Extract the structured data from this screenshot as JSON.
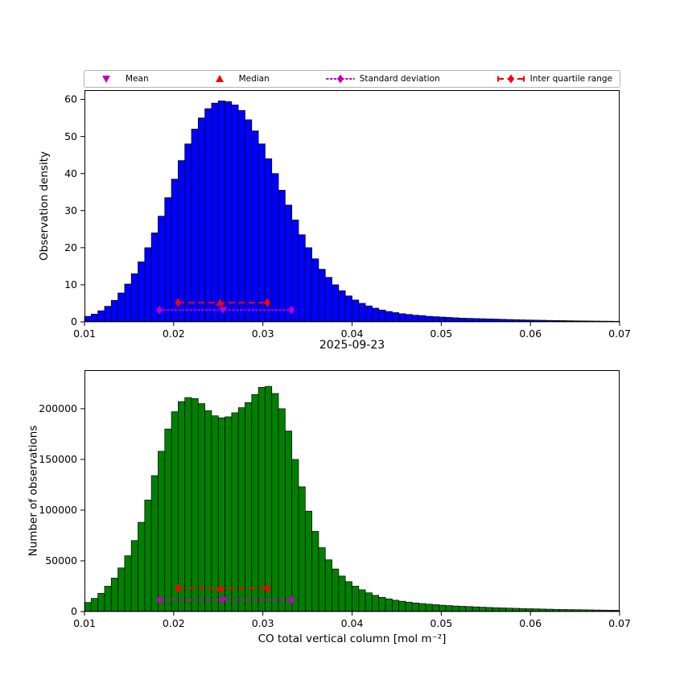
{
  "figure": {
    "title": "2025-09-23",
    "xlabel": "CO total vertical column [mol m⁻²]",
    "background": "#ffffff"
  },
  "legend": {
    "items": [
      {
        "label": "Mean",
        "style": "triangle-down",
        "color": "#bf00bf"
      },
      {
        "label": "Median",
        "style": "triangle-up",
        "color": "#ff0000"
      },
      {
        "label": "Standard deviation",
        "style": "diamond-dotted",
        "color": "#bf00bf"
      },
      {
        "label": "Inter quartile range",
        "style": "diamond-dashed",
        "color": "#ff0000"
      }
    ]
  },
  "chart_data": [
    {
      "type": "bar",
      "name": "observation-density-histogram",
      "ylabel": "Observation density",
      "bar_color": "#0000ff",
      "bar_edge_color": "#000000",
      "bin_start": 0.01,
      "bin_width": 0.00075,
      "xlim": [
        0.01,
        0.07
      ],
      "ylim": [
        0,
        62.5
      ],
      "xticks": [
        0.01,
        0.02,
        0.03,
        0.04,
        0.05,
        0.06,
        0.07
      ],
      "xtick_labels": [
        "0.01",
        "0.02",
        "0.03",
        "0.04",
        "0.05",
        "0.06",
        "0.07"
      ],
      "yticks": [
        0,
        10,
        20,
        30,
        40,
        50,
        60
      ],
      "ytick_labels": [
        "0",
        "10",
        "20",
        "30",
        "40",
        "50",
        "60"
      ],
      "values": [
        1.5,
        2.1,
        3.0,
        4.2,
        5.8,
        7.8,
        10.2,
        13.0,
        16.2,
        20.0,
        24.0,
        28.5,
        33.5,
        38.5,
        43.5,
        48.0,
        52.0,
        55.0,
        57.5,
        59.0,
        59.6,
        59.4,
        58.5,
        57.0,
        54.5,
        51.5,
        48.0,
        44.0,
        40.0,
        35.5,
        31.5,
        27.5,
        23.5,
        20.0,
        17.0,
        14.2,
        12.0,
        10.0,
        8.4,
        7.0,
        5.9,
        5.0,
        4.3,
        3.7,
        3.2,
        2.8,
        2.5,
        2.2,
        2.0,
        1.8,
        1.7,
        1.5,
        1.4,
        1.3,
        1.2,
        1.1,
        1.0,
        0.95,
        0.9,
        0.85,
        0.8,
        0.75,
        0.7,
        0.65,
        0.6,
        0.55,
        0.5,
        0.47,
        0.44,
        0.4,
        0.37,
        0.34,
        0.31,
        0.28,
        0.26,
        0.24,
        0.22,
        0.2,
        0.18,
        0.16
      ],
      "markers": {
        "mean": {
          "x": 0.0255,
          "y": 3.2,
          "color": "#bf00bf"
        },
        "median": {
          "x": 0.0252,
          "y": 5.2,
          "color": "#ff0000"
        },
        "std": {
          "x1": 0.0184,
          "x2": 0.0332,
          "y": 3.2,
          "color": "#bf00bf"
        },
        "iqr": {
          "x1": 0.0205,
          "x2": 0.0305,
          "y": 5.2,
          "color": "#ff0000"
        }
      }
    },
    {
      "type": "bar",
      "name": "number-of-observations-histogram",
      "ylabel": "Number of observations",
      "bar_color": "#008000",
      "bar_edge_color": "#000000",
      "bin_start": 0.01,
      "bin_width": 0.00075,
      "xlim": [
        0.01,
        0.07
      ],
      "ylim": [
        0,
        238000
      ],
      "xticks": [
        0.01,
        0.02,
        0.03,
        0.04,
        0.05,
        0.06,
        0.07
      ],
      "xtick_labels": [
        "0.01",
        "0.02",
        "0.03",
        "0.04",
        "0.05",
        "0.06",
        "0.07"
      ],
      "yticks": [
        0,
        50000,
        100000,
        150000,
        200000
      ],
      "ytick_labels": [
        "0",
        "50000",
        "100000",
        "150000",
        "200000"
      ],
      "values": [
        9000,
        13000,
        18000,
        25000,
        33000,
        43000,
        55000,
        70000,
        88000,
        110000,
        134000,
        158000,
        180000,
        197000,
        207000,
        211000,
        210000,
        205000,
        198000,
        193000,
        191000,
        192000,
        196000,
        201000,
        206000,
        214000,
        221000,
        222000,
        215000,
        200000,
        178000,
        150000,
        123000,
        99000,
        79000,
        63000,
        51000,
        42000,
        35000,
        29500,
        25000,
        21500,
        18500,
        16000,
        14000,
        12500,
        11200,
        10200,
        9300,
        8500,
        7900,
        7300,
        6800,
        6300,
        5900,
        5500,
        5200,
        4900,
        4600,
        4300,
        4050,
        3800,
        3600,
        3400,
        3200,
        3000,
        2800,
        2650,
        2500,
        2350,
        2200,
        2050,
        1950,
        1850,
        1750,
        1650,
        1550,
        1450,
        1350,
        1250
      ],
      "markers": {
        "mean": {
          "x": 0.0255,
          "y": 11500,
          "color": "#bf00bf"
        },
        "median": {
          "x": 0.0252,
          "y": 23000,
          "color": "#ff0000"
        },
        "std": {
          "x1": 0.0184,
          "x2": 0.0332,
          "y": 11500,
          "color": "#bf00bf"
        },
        "iqr": {
          "x1": 0.0205,
          "x2": 0.0305,
          "y": 23000,
          "color": "#ff0000"
        }
      }
    }
  ]
}
